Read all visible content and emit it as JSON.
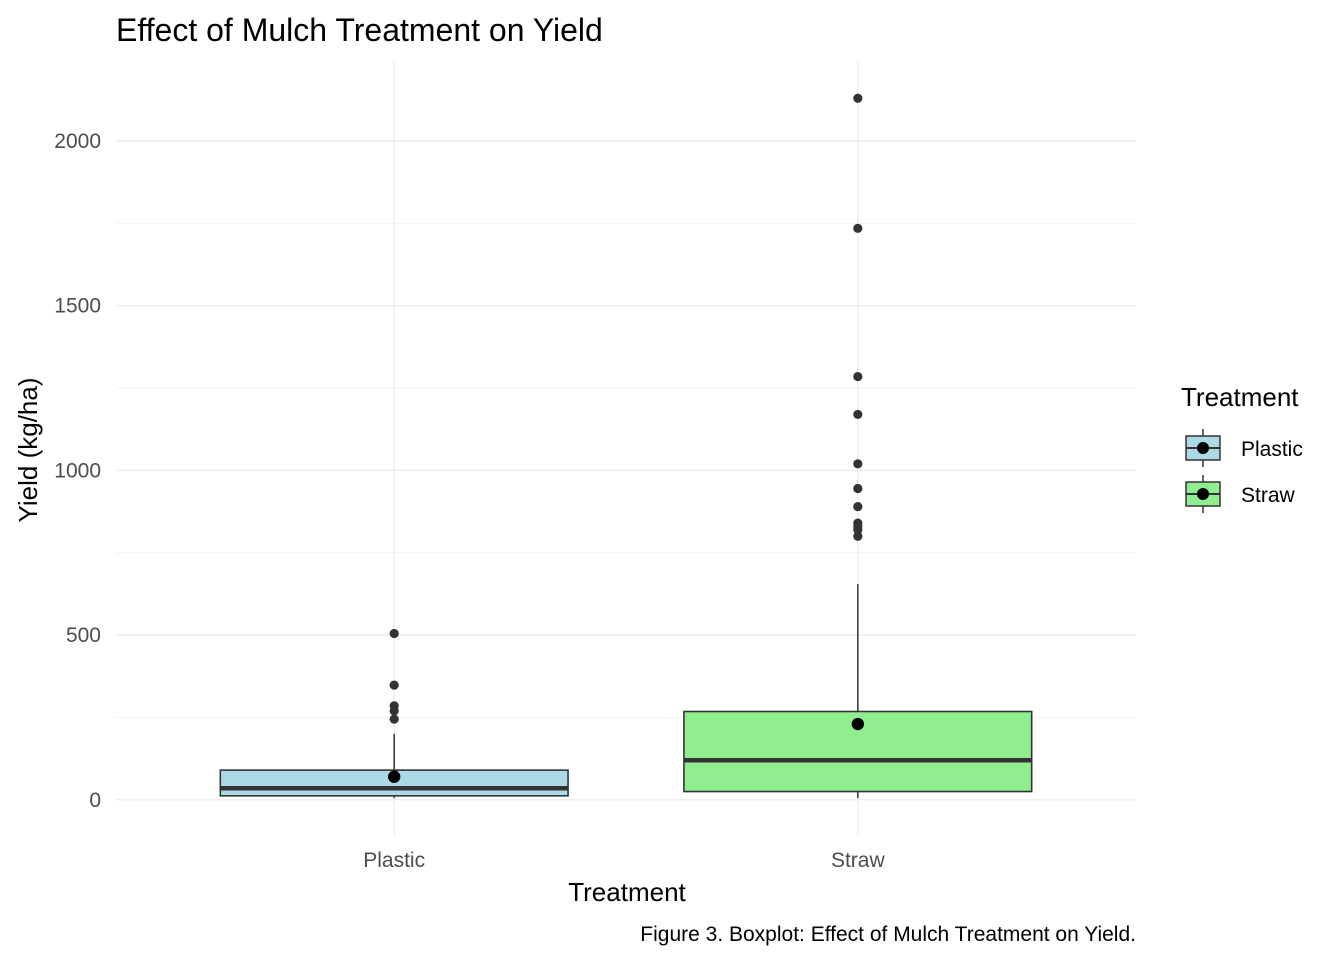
{
  "chart_data": {
    "type": "box",
    "title": "Effect of Mulch Treatment on Yield",
    "xlabel": "Treatment",
    "ylabel": "Yield (kg/ha)",
    "caption": "Figure 3. Boxplot: Effect of Mulch Treatment on Yield.",
    "ylim": [
      -110,
      2240
    ],
    "y_ticks": [
      0,
      500,
      1000,
      1500,
      2000
    ],
    "y_minor_ticks": [
      250,
      750,
      1250,
      1750
    ],
    "grid": true,
    "categories": [
      "Plastic",
      "Straw"
    ],
    "colors": {
      "Plastic": "#add8e6",
      "Straw": "#90ee90"
    },
    "legend": {
      "title": "Treatment",
      "position": "right",
      "items": [
        "Plastic",
        "Straw"
      ]
    },
    "boxes": [
      {
        "category": "Plastic",
        "whisker_low": 5,
        "q1": 12,
        "median": 35,
        "q3": 90,
        "whisker_high": 200,
        "mean": 70,
        "outliers": [
          505,
          348,
          285,
          270,
          245
        ]
      },
      {
        "category": "Straw",
        "whisker_low": 5,
        "q1": 25,
        "median": 120,
        "q3": 268,
        "whisker_high": 655,
        "mean": 230,
        "outliers": [
          2130,
          1735,
          1285,
          1170,
          1020,
          945,
          890,
          840,
          830,
          820,
          800
        ]
      }
    ]
  }
}
